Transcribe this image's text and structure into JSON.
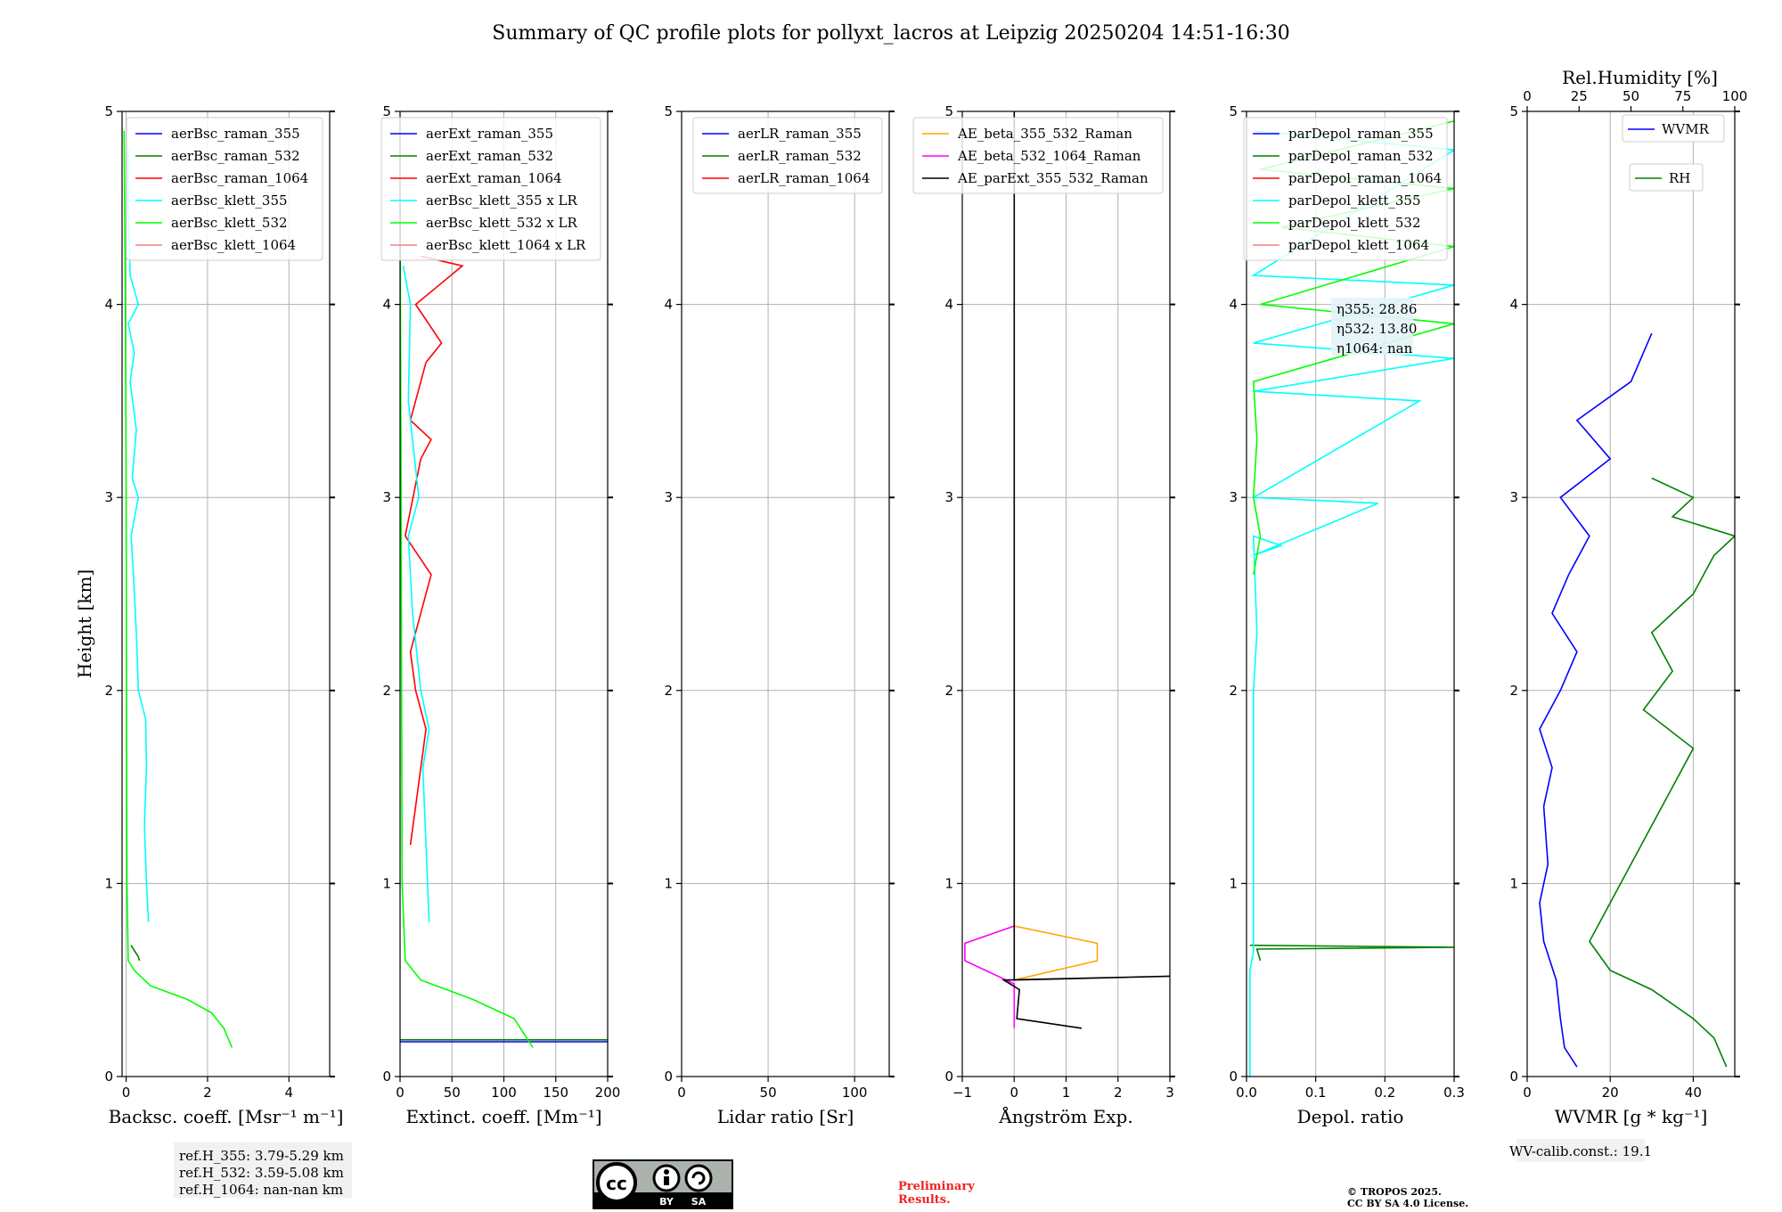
{
  "title": "Summary of QC profile plots for pollyxt_lacros at Leipzig 20250204 14:51-16:30",
  "y_label": "Height [km]",
  "rh_label": "Rel.Humidity [%]",
  "rh_ticks": [
    "0",
    "25",
    "50",
    "75",
    "100"
  ],
  "ref_box": [
    "ref.H_355: 3.79-5.29 km",
    "ref.H_532: 3.59-5.08 km",
    "ref.H_1064: nan-nan km"
  ],
  "eta_box": [
    "η355: 28.86",
    "η532: 13.80",
    "η1064: nan"
  ],
  "wv_calib": "WV-calib.const.: 19.1",
  "preliminary": [
    "Preliminary",
    "Results."
  ],
  "copyright": [
    "© TROPOS 2025.",
    "CC BY SA 4.0 License."
  ],
  "license_badge": [
    "BY",
    "SA"
  ],
  "colors": {
    "blue": "#0000ff",
    "green": "#008000",
    "red": "#ff0000",
    "cyan": "#00ffff",
    "lime": "#00ff00",
    "pink": "#f08080",
    "orange": "#ffa500",
    "magenta": "#ff00ff",
    "black": "#000000"
  },
  "chart_data": [
    {
      "type": "line",
      "xlabel": "Backsc. coeff. [Msr⁻¹ m⁻¹]",
      "ylabel": "Height [km]",
      "xlim": [
        -0.1,
        5
      ],
      "ylim": [
        0,
        5
      ],
      "xticks": [
        "0",
        "2",
        "4"
      ],
      "yticks": [
        "0",
        "1",
        "2",
        "3",
        "4",
        "5"
      ],
      "grid": true,
      "legend": "top-right",
      "series": [
        {
          "name": "aerBsc_raman_355",
          "color": "blue",
          "points": []
        },
        {
          "name": "aerBsc_raman_532",
          "color": "green",
          "points": [
            [
              0.12,
              0.68
            ],
            [
              0.3,
              0.62
            ],
            [
              0.33,
              0.6
            ]
          ]
        },
        {
          "name": "aerBsc_raman_1064",
          "color": "red",
          "points": []
        },
        {
          "name": "aerBsc_klett_355",
          "color": "cyan",
          "points": [
            [
              0.55,
              0.8
            ],
            [
              0.5,
              1.0
            ],
            [
              0.45,
              1.3
            ],
            [
              0.5,
              1.6
            ],
            [
              0.48,
              1.85
            ],
            [
              0.3,
              2.0
            ],
            [
              0.25,
              2.3
            ],
            [
              0.18,
              2.6
            ],
            [
              0.12,
              2.8
            ],
            [
              0.3,
              3.0
            ],
            [
              0.15,
              3.1
            ],
            [
              0.25,
              3.35
            ],
            [
              0.1,
              3.6
            ],
            [
              0.2,
              3.75
            ],
            [
              0.05,
              3.9
            ],
            [
              0.3,
              4.0
            ],
            [
              0.1,
              4.15
            ],
            [
              0.05,
              4.5
            ],
            [
              0.05,
              4.8
            ]
          ]
        },
        {
          "name": "aerBsc_klett_532",
          "color": "lime",
          "points": [
            [
              2.6,
              0.15
            ],
            [
              2.4,
              0.25
            ],
            [
              2.1,
              0.33
            ],
            [
              1.5,
              0.4
            ],
            [
              0.6,
              0.47
            ],
            [
              0.2,
              0.55
            ],
            [
              0.05,
              0.6
            ],
            [
              0.02,
              1.0
            ],
            [
              0.01,
              2.0
            ],
            [
              0.0,
              3.0
            ],
            [
              -0.02,
              4.0
            ],
            [
              -0.05,
              4.9
            ]
          ]
        },
        {
          "name": "aerBsc_klett_1064",
          "color": "pink",
          "points": []
        }
      ]
    },
    {
      "type": "line",
      "xlabel": "Extinct. coeff. [Mm⁻¹]",
      "xlim": [
        0,
        200
      ],
      "ylim": [
        0,
        5
      ],
      "xticks": [
        "0",
        "50",
        "100",
        "150",
        "200"
      ],
      "yticks": [
        "0",
        "1",
        "2",
        "3",
        "4",
        "5"
      ],
      "grid": true,
      "legend": "top-right",
      "series": [
        {
          "name": "aerExt_raman_355",
          "color": "blue",
          "points": [
            [
              200,
              0.18
            ],
            [
              0,
              0.18
            ]
          ]
        },
        {
          "name": "aerExt_raman_532",
          "color": "green",
          "points": [
            [
              200,
              0.19
            ],
            [
              0,
              0.19
            ]
          ]
        },
        {
          "name": "aerExt_raman_1064",
          "color": "red",
          "points": [
            [
              10,
              1.2
            ],
            [
              15,
              1.4
            ],
            [
              20,
              1.6
            ],
            [
              25,
              1.8
            ],
            [
              15,
              2.0
            ],
            [
              10,
              2.2
            ],
            [
              30,
              2.6
            ],
            [
              5,
              2.8
            ],
            [
              20,
              3.2
            ],
            [
              30,
              3.3
            ],
            [
              10,
              3.4
            ],
            [
              25,
              3.7
            ],
            [
              40,
              3.8
            ],
            [
              15,
              4.0
            ],
            [
              60,
              4.2
            ],
            [
              20,
              4.25
            ]
          ]
        },
        {
          "name": "aerBsc_klett_355 x LR",
          "color": "cyan",
          "points": [
            [
              28,
              0.8
            ],
            [
              25,
              1.2
            ],
            [
              22,
              1.6
            ],
            [
              28,
              1.8
            ],
            [
              20,
              2.0
            ],
            [
              12,
              2.4
            ],
            [
              8,
              2.8
            ],
            [
              18,
              3.0
            ],
            [
              8,
              3.5
            ],
            [
              10,
              4.0
            ],
            [
              3,
              4.2
            ]
          ]
        },
        {
          "name": "aerBsc_klett_532 x LR",
          "color": "lime",
          "points": [
            [
              128,
              0.15
            ],
            [
              110,
              0.3
            ],
            [
              70,
              0.4
            ],
            [
              20,
              0.5
            ],
            [
              5,
              0.6
            ],
            [
              2,
              1.0
            ],
            [
              1,
              3.0
            ],
            [
              0,
              4.5
            ]
          ]
        },
        {
          "name": "aerBsc_klett_1064 x LR",
          "color": "pink",
          "points": []
        }
      ]
    },
    {
      "type": "line",
      "xlabel": "Lidar ratio [Sr]",
      "xlim": [
        0,
        120
      ],
      "ylim": [
        0,
        5
      ],
      "xticks": [
        "0",
        "50",
        "100"
      ],
      "yticks": [
        "0",
        "1",
        "2",
        "3",
        "4",
        "5"
      ],
      "grid": true,
      "legend": "top-right",
      "series": [
        {
          "name": "aerLR_raman_355",
          "color": "blue",
          "points": []
        },
        {
          "name": "aerLR_raman_532",
          "color": "green",
          "points": []
        },
        {
          "name": "aerLR_raman_1064",
          "color": "red",
          "points": []
        }
      ]
    },
    {
      "type": "line",
      "xlabel": "Ångström Exp.",
      "xlim": [
        -1,
        3
      ],
      "ylim": [
        0,
        5
      ],
      "xticks": [
        "−1",
        "0",
        "1",
        "2",
        "3"
      ],
      "yticks": [
        "0",
        "1",
        "2",
        "3",
        "4",
        "5"
      ],
      "grid": true,
      "legend": "top-right",
      "series": [
        {
          "name": "AE_beta_355_532_Raman",
          "color": "orange",
          "points": [
            [
              0,
              0.78
            ],
            [
              1.6,
              0.69
            ],
            [
              1.6,
              0.6
            ],
            [
              0,
              0.5
            ]
          ]
        },
        {
          "name": "AE_beta_532_1064_Raman",
          "color": "magenta",
          "points": [
            [
              0,
              0.78
            ],
            [
              -0.95,
              0.69
            ],
            [
              -0.95,
              0.6
            ],
            [
              0,
              0.48
            ],
            [
              0,
              0.25
            ]
          ]
        },
        {
          "name": "AE_parExt_355_532_Raman",
          "color": "black",
          "points": [
            [
              0,
              5.0
            ],
            [
              0,
              0.5
            ],
            [
              3,
              0.52
            ],
            [
              -0.2,
              0.5
            ],
            [
              0.1,
              0.45
            ],
            [
              0.05,
              0.3
            ],
            [
              1.3,
              0.25
            ]
          ]
        }
      ]
    },
    {
      "type": "line",
      "xlabel": "Depol. ratio",
      "xlim": [
        0,
        0.3
      ],
      "ylim": [
        0,
        5
      ],
      "xticks": [
        "0.0",
        "0.1",
        "0.2",
        "0.3"
      ],
      "yticks": [
        "0",
        "1",
        "2",
        "3",
        "4",
        "5"
      ],
      "grid": true,
      "legend": "top-right",
      "series": [
        {
          "name": "parDepol_raman_355",
          "color": "blue",
          "points": []
        },
        {
          "name": "parDepol_raman_532",
          "color": "green",
          "points": [
            [
              0.005,
              0.68
            ],
            [
              0.3,
              0.67
            ],
            [
              0.015,
              0.66
            ],
            [
              0.02,
              0.6
            ]
          ]
        },
        {
          "name": "parDepol_raman_1064",
          "color": "red",
          "points": []
        },
        {
          "name": "parDepol_klett_355",
          "color": "cyan",
          "points": [
            [
              0.005,
              0.0
            ],
            [
              0.005,
              0.55
            ],
            [
              0.01,
              0.65
            ],
            [
              0.01,
              1.5
            ],
            [
              0.01,
              2.0
            ],
            [
              0.015,
              2.3
            ],
            [
              0.01,
              2.8
            ],
            [
              0.05,
              2.75
            ],
            [
              0.01,
              2.7
            ],
            [
              0.19,
              2.97
            ],
            [
              0.01,
              3.0
            ],
            [
              0.25,
              3.5
            ],
            [
              0.01,
              3.55
            ],
            [
              0.3,
              3.72
            ],
            [
              0.01,
              3.8
            ],
            [
              0.3,
              4.1
            ],
            [
              0.01,
              4.15
            ],
            [
              0.3,
              4.8
            ],
            [
              0.01,
              4.9
            ]
          ]
        },
        {
          "name": "parDepol_klett_532",
          "color": "lime",
          "points": [
            [
              0.01,
              2.6
            ],
            [
              0.02,
              2.8
            ],
            [
              0.01,
              3.0
            ],
            [
              0.015,
              3.3
            ],
            [
              0.01,
              3.6
            ],
            [
              0.3,
              3.9
            ],
            [
              0.02,
              4.0
            ],
            [
              0.3,
              4.3
            ],
            [
              0.05,
              4.4
            ],
            [
              0.3,
              4.6
            ],
            [
              0.02,
              4.7
            ],
            [
              0.3,
              4.95
            ]
          ]
        },
        {
          "name": "parDepol_klett_1064",
          "color": "pink",
          "points": []
        }
      ]
    },
    {
      "type": "line",
      "xlabel": "WVMR [g * kg⁻¹]",
      "xlim": [
        0,
        50
      ],
      "ylim": [
        0,
        5
      ],
      "xticks": [
        "0",
        "20",
        "40"
      ],
      "yticks": [
        "0",
        "1",
        "2",
        "3",
        "4",
        "5"
      ],
      "grid": true,
      "legend": "top-right",
      "series": [
        {
          "name": "WVMR",
          "color": "blue",
          "points": [
            [
              12,
              0.05
            ],
            [
              9,
              0.15
            ],
            [
              8,
              0.3
            ],
            [
              7,
              0.5
            ],
            [
              4,
              0.7
            ],
            [
              3,
              0.9
            ],
            [
              5,
              1.1
            ],
            [
              4,
              1.4
            ],
            [
              6,
              1.6
            ],
            [
              3,
              1.8
            ],
            [
              8,
              2.0
            ],
            [
              12,
              2.2
            ],
            [
              6,
              2.4
            ],
            [
              10,
              2.6
            ],
            [
              15,
              2.8
            ],
            [
              8,
              3.0
            ],
            [
              20,
              3.2
            ],
            [
              12,
              3.4
            ],
            [
              25,
              3.6
            ],
            [
              30,
              3.85
            ]
          ]
        },
        {
          "name": "RH",
          "color": "green",
          "points": [
            [
              48,
              0.05
            ],
            [
              45,
              0.2
            ],
            [
              40,
              0.3
            ],
            [
              30,
              0.45
            ],
            [
              20,
              0.55
            ],
            [
              15,
              0.7
            ],
            [
              20,
              0.9
            ],
            [
              25,
              1.1
            ],
            [
              30,
              1.3
            ],
            [
              35,
              1.5
            ],
            [
              40,
              1.7
            ],
            [
              28,
              1.9
            ],
            [
              35,
              2.1
            ],
            [
              30,
              2.3
            ],
            [
              40,
              2.5
            ],
            [
              45,
              2.7
            ],
            [
              50,
              2.8
            ],
            [
              35,
              2.9
            ],
            [
              40,
              3.0
            ],
            [
              30,
              3.1
            ]
          ]
        }
      ]
    }
  ]
}
